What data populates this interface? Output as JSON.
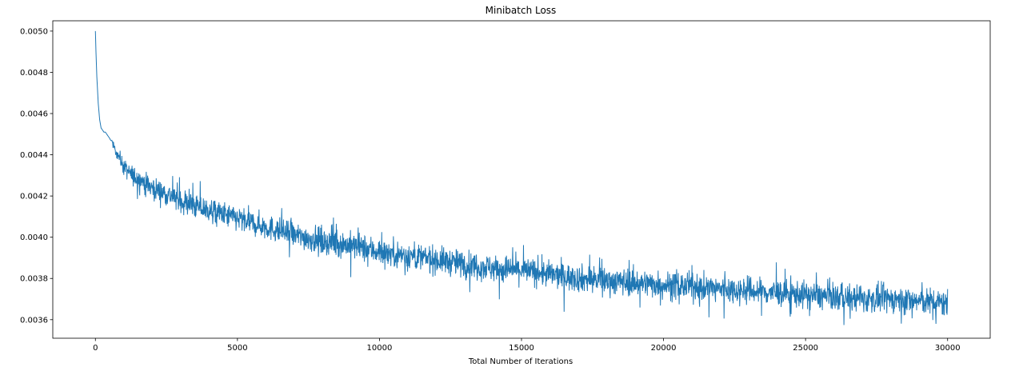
{
  "chart_data": {
    "type": "line",
    "title": "Minibatch Loss",
    "xlabel": "Total Number of Iterations",
    "ylabel": "",
    "xlim": [
      -1500,
      31500
    ],
    "ylim": [
      0.00351,
      0.00505
    ],
    "xticks": [
      0,
      5000,
      10000,
      15000,
      20000,
      25000,
      30000
    ],
    "xtick_labels": [
      "0",
      "5000",
      "10000",
      "15000",
      "20000",
      "25000",
      "30000"
    ],
    "yticks": [
      0.0036,
      0.0038,
      0.004,
      0.0042,
      0.0044,
      0.0046,
      0.0048,
      0.005
    ],
    "ytick_labels": [
      "0.0036",
      "0.0038",
      "0.0040",
      "0.0042",
      "0.0044",
      "0.0046",
      "0.0048",
      "0.0050"
    ],
    "grid": false,
    "legend": "none",
    "line_color": "#1f77b4",
    "series": [
      {
        "x": [
          0,
          20,
          50,
          100,
          150,
          200,
          250,
          300,
          350,
          400,
          450,
          500,
          550,
          600,
          650,
          700,
          750,
          800,
          900,
          1000,
          1200,
          1400,
          1600,
          1800,
          2000,
          2500,
          3000,
          3500,
          4000,
          4500,
          5000,
          6000,
          7000,
          8000,
          9000,
          10000,
          11000,
          12000,
          13000,
          14000,
          15000,
          16000,
          17000,
          18000,
          19000,
          20000,
          21000,
          22000,
          23000,
          24000,
          25000,
          26000,
          27000,
          28000,
          29000,
          30000
        ],
        "mean": [
          0.005,
          0.0049,
          0.00478,
          0.00465,
          0.00457,
          0.00453,
          0.00452,
          0.00451,
          0.00451,
          0.0045,
          0.00449,
          0.00448,
          0.00447,
          0.00446,
          0.00444,
          0.00442,
          0.00441,
          0.0044,
          0.00437,
          0.00434,
          0.00431,
          0.00429,
          0.00428,
          0.00426,
          0.00424,
          0.00421,
          0.00418,
          0.00415,
          0.00413,
          0.00411,
          0.00409,
          0.00405,
          0.00401,
          0.00398,
          0.00396,
          0.00393,
          0.00391,
          0.00389,
          0.00387,
          0.00385,
          0.00384,
          0.00382,
          0.0038,
          0.00379,
          0.00378,
          0.00377,
          0.00376,
          0.00375,
          0.00374,
          0.00373,
          0.00372,
          0.00371,
          0.0037,
          0.0037,
          0.00369,
          0.00368
        ],
        "band": [
          0.0,
          0.0,
          0.0,
          0.0,
          0.0,
          0.0,
          0.0,
          0.0,
          0.0,
          0.0,
          0.0,
          0.0,
          5e-06,
          1e-05,
          1.5e-05,
          2e-05,
          2.5e-05,
          3e-05,
          3.5e-05,
          4e-05,
          4.5e-05,
          5e-05,
          5e-05,
          5e-05,
          5.5e-05,
          5.5e-05,
          6e-05,
          6e-05,
          6e-05,
          6e-05,
          6e-05,
          6e-05,
          6e-05,
          6.5e-05,
          6.5e-05,
          6.5e-05,
          6.5e-05,
          6.5e-05,
          6.5e-05,
          6.5e-05,
          6.5e-05,
          6.5e-05,
          6.5e-05,
          6.5e-05,
          6.5e-05,
          6.5e-05,
          6.5e-05,
          6.5e-05,
          6.5e-05,
          6.5e-05,
          6.5e-05,
          6.5e-05,
          6.5e-05,
          6.5e-05,
          6.5e-05,
          6.5e-05
        ]
      }
    ]
  }
}
